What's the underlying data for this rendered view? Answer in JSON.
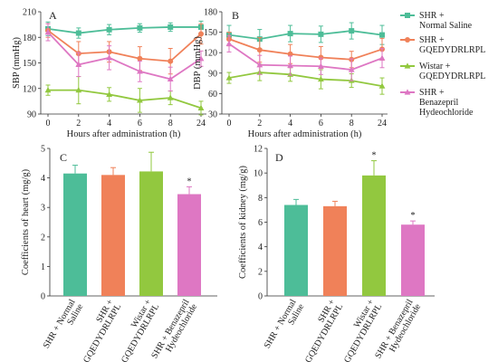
{
  "colors": {
    "shr_saline": "#4dbd98",
    "shr_peptide": "#f08159",
    "wistar_peptide": "#92c83f",
    "shr_benazepril": "#de77c3",
    "axis": "#333333"
  },
  "legend": [
    {
      "line1": "SHR +",
      "line2": "Normal Saline",
      "color_key": "shr_saline"
    },
    {
      "line1": "SHR +",
      "line2": "GQEDYDRLRPL",
      "color_key": "shr_peptide"
    },
    {
      "line1": "Wistar +",
      "line2": "GQEDYDRLRPL",
      "color_key": "wistar_peptide"
    },
    {
      "line1": "SHR +",
      "line2": "Benazepril",
      "line3": "Hydeochloride",
      "color_key": "shr_benazepril"
    }
  ],
  "chart_data": [
    {
      "panel": "A",
      "type": "line",
      "ylabel": "SBP (mmHg)",
      "xlabel": "Hours after administration (h)",
      "x": [
        0,
        2,
        4,
        6,
        8,
        24
      ],
      "x_ticks": [
        "0",
        "2",
        "4",
        "6",
        "8",
        "24"
      ],
      "ylim": [
        90,
        210
      ],
      "y_ticks": [
        90,
        120,
        150,
        180,
        210
      ],
      "series": [
        {
          "name": "SHR + Normal Saline",
          "color_key": "shr_saline",
          "marker": "square",
          "values": [
            190,
            185,
            189,
            191,
            192,
            192
          ],
          "errors": [
            8,
            6,
            6,
            5,
            5,
            7
          ]
        },
        {
          "name": "SHR + GQEDYDRLRPL",
          "color_key": "shr_peptide",
          "marker": "circle",
          "values": [
            188,
            161,
            163,
            155,
            152,
            184
          ],
          "errors": [
            8,
            14,
            12,
            14,
            15,
            12
          ]
        },
        {
          "name": "Wistar + GQEDYDRLRPL",
          "color_key": "wistar_peptide",
          "marker": "triangle",
          "values": [
            118,
            118,
            113,
            106,
            109,
            97
          ],
          "errors": [
            6,
            16,
            8,
            14,
            8,
            8
          ]
        },
        {
          "name": "SHR + Benazepril Hydeochloride",
          "color_key": "shr_benazepril",
          "marker": "triangle",
          "values": [
            186,
            148,
            156,
            140,
            131,
            155
          ],
          "errors": [
            10,
            14,
            14,
            12,
            14,
            9
          ]
        }
      ]
    },
    {
      "panel": "B",
      "type": "line",
      "ylabel": "DBP (mmHg)",
      "xlabel": "Hours after administration (h)",
      "x": [
        0,
        2,
        4,
        6,
        8,
        24
      ],
      "x_ticks": [
        "0",
        "2",
        "4",
        "6",
        "8",
        "24"
      ],
      "ylim": [
        30,
        180
      ],
      "y_ticks": [
        30,
        60,
        90,
        120,
        150,
        180
      ],
      "series": [
        {
          "name": "SHR + Normal Saline",
          "color_key": "shr_saline",
          "marker": "square",
          "values": [
            146,
            140,
            148,
            147,
            152,
            146
          ],
          "errors": [
            14,
            14,
            12,
            12,
            12,
            14
          ]
        },
        {
          "name": "SHR + GQEDYDRLRPL",
          "color_key": "shr_peptide",
          "marker": "circle",
          "values": [
            140,
            124,
            118,
            113,
            110,
            125
          ],
          "errors": [
            10,
            18,
            14,
            16,
            12,
            16
          ]
        },
        {
          "name": "Wistar + GQEDYDRLRPL",
          "color_key": "wistar_peptide",
          "marker": "triangle",
          "values": [
            83,
            91,
            88,
            81,
            79,
            71
          ],
          "errors": [
            8,
            12,
            10,
            14,
            10,
            12
          ]
        },
        {
          "name": "SHR + Benazepril Hydeochloride",
          "color_key": "shr_benazepril",
          "marker": "triangle",
          "values": [
            133,
            102,
            101,
            100,
            95,
            112
          ],
          "errors": [
            12,
            14,
            14,
            12,
            16,
            14
          ]
        }
      ]
    },
    {
      "panel": "C",
      "type": "bar",
      "ylabel": "Coefficients of heart (mg/g)",
      "categories": [
        "SHR + Normal\nSaline",
        "SHR +\nGQEDYDRLRPL",
        "Wistar +\nGQEDYDRLRPL",
        "SHR + Benazepril\nHydeochloride"
      ],
      "color_keys": [
        "shr_saline",
        "shr_peptide",
        "wistar_peptide",
        "shr_benazepril"
      ],
      "values": [
        4.15,
        4.1,
        4.22,
        3.45
      ],
      "errors": [
        0.28,
        0.25,
        0.65,
        0.25
      ],
      "significance": [
        "",
        "",
        "",
        "*"
      ],
      "ylim": [
        0,
        5
      ],
      "y_ticks": [
        0,
        1,
        2,
        3,
        4,
        5
      ]
    },
    {
      "panel": "D",
      "type": "bar",
      "ylabel": "Coefficients of kidney (mg/g)",
      "categories": [
        "SHR + Normal\nSaline",
        "SHR +\nGQEDYDRLRPL",
        "Wistar +\nGQEDYDRLRPL",
        "SHR + Benazepril\nHydeochloride"
      ],
      "color_keys": [
        "shr_saline",
        "shr_peptide",
        "wistar_peptide",
        "shr_benazepril"
      ],
      "values": [
        7.4,
        7.3,
        9.8,
        5.8
      ],
      "errors": [
        0.45,
        0.4,
        1.2,
        0.3
      ],
      "significance": [
        "",
        "",
        "*",
        "*"
      ],
      "ylim": [
        0,
        12
      ],
      "y_ticks": [
        0,
        2,
        4,
        6,
        8,
        10,
        12
      ]
    }
  ]
}
